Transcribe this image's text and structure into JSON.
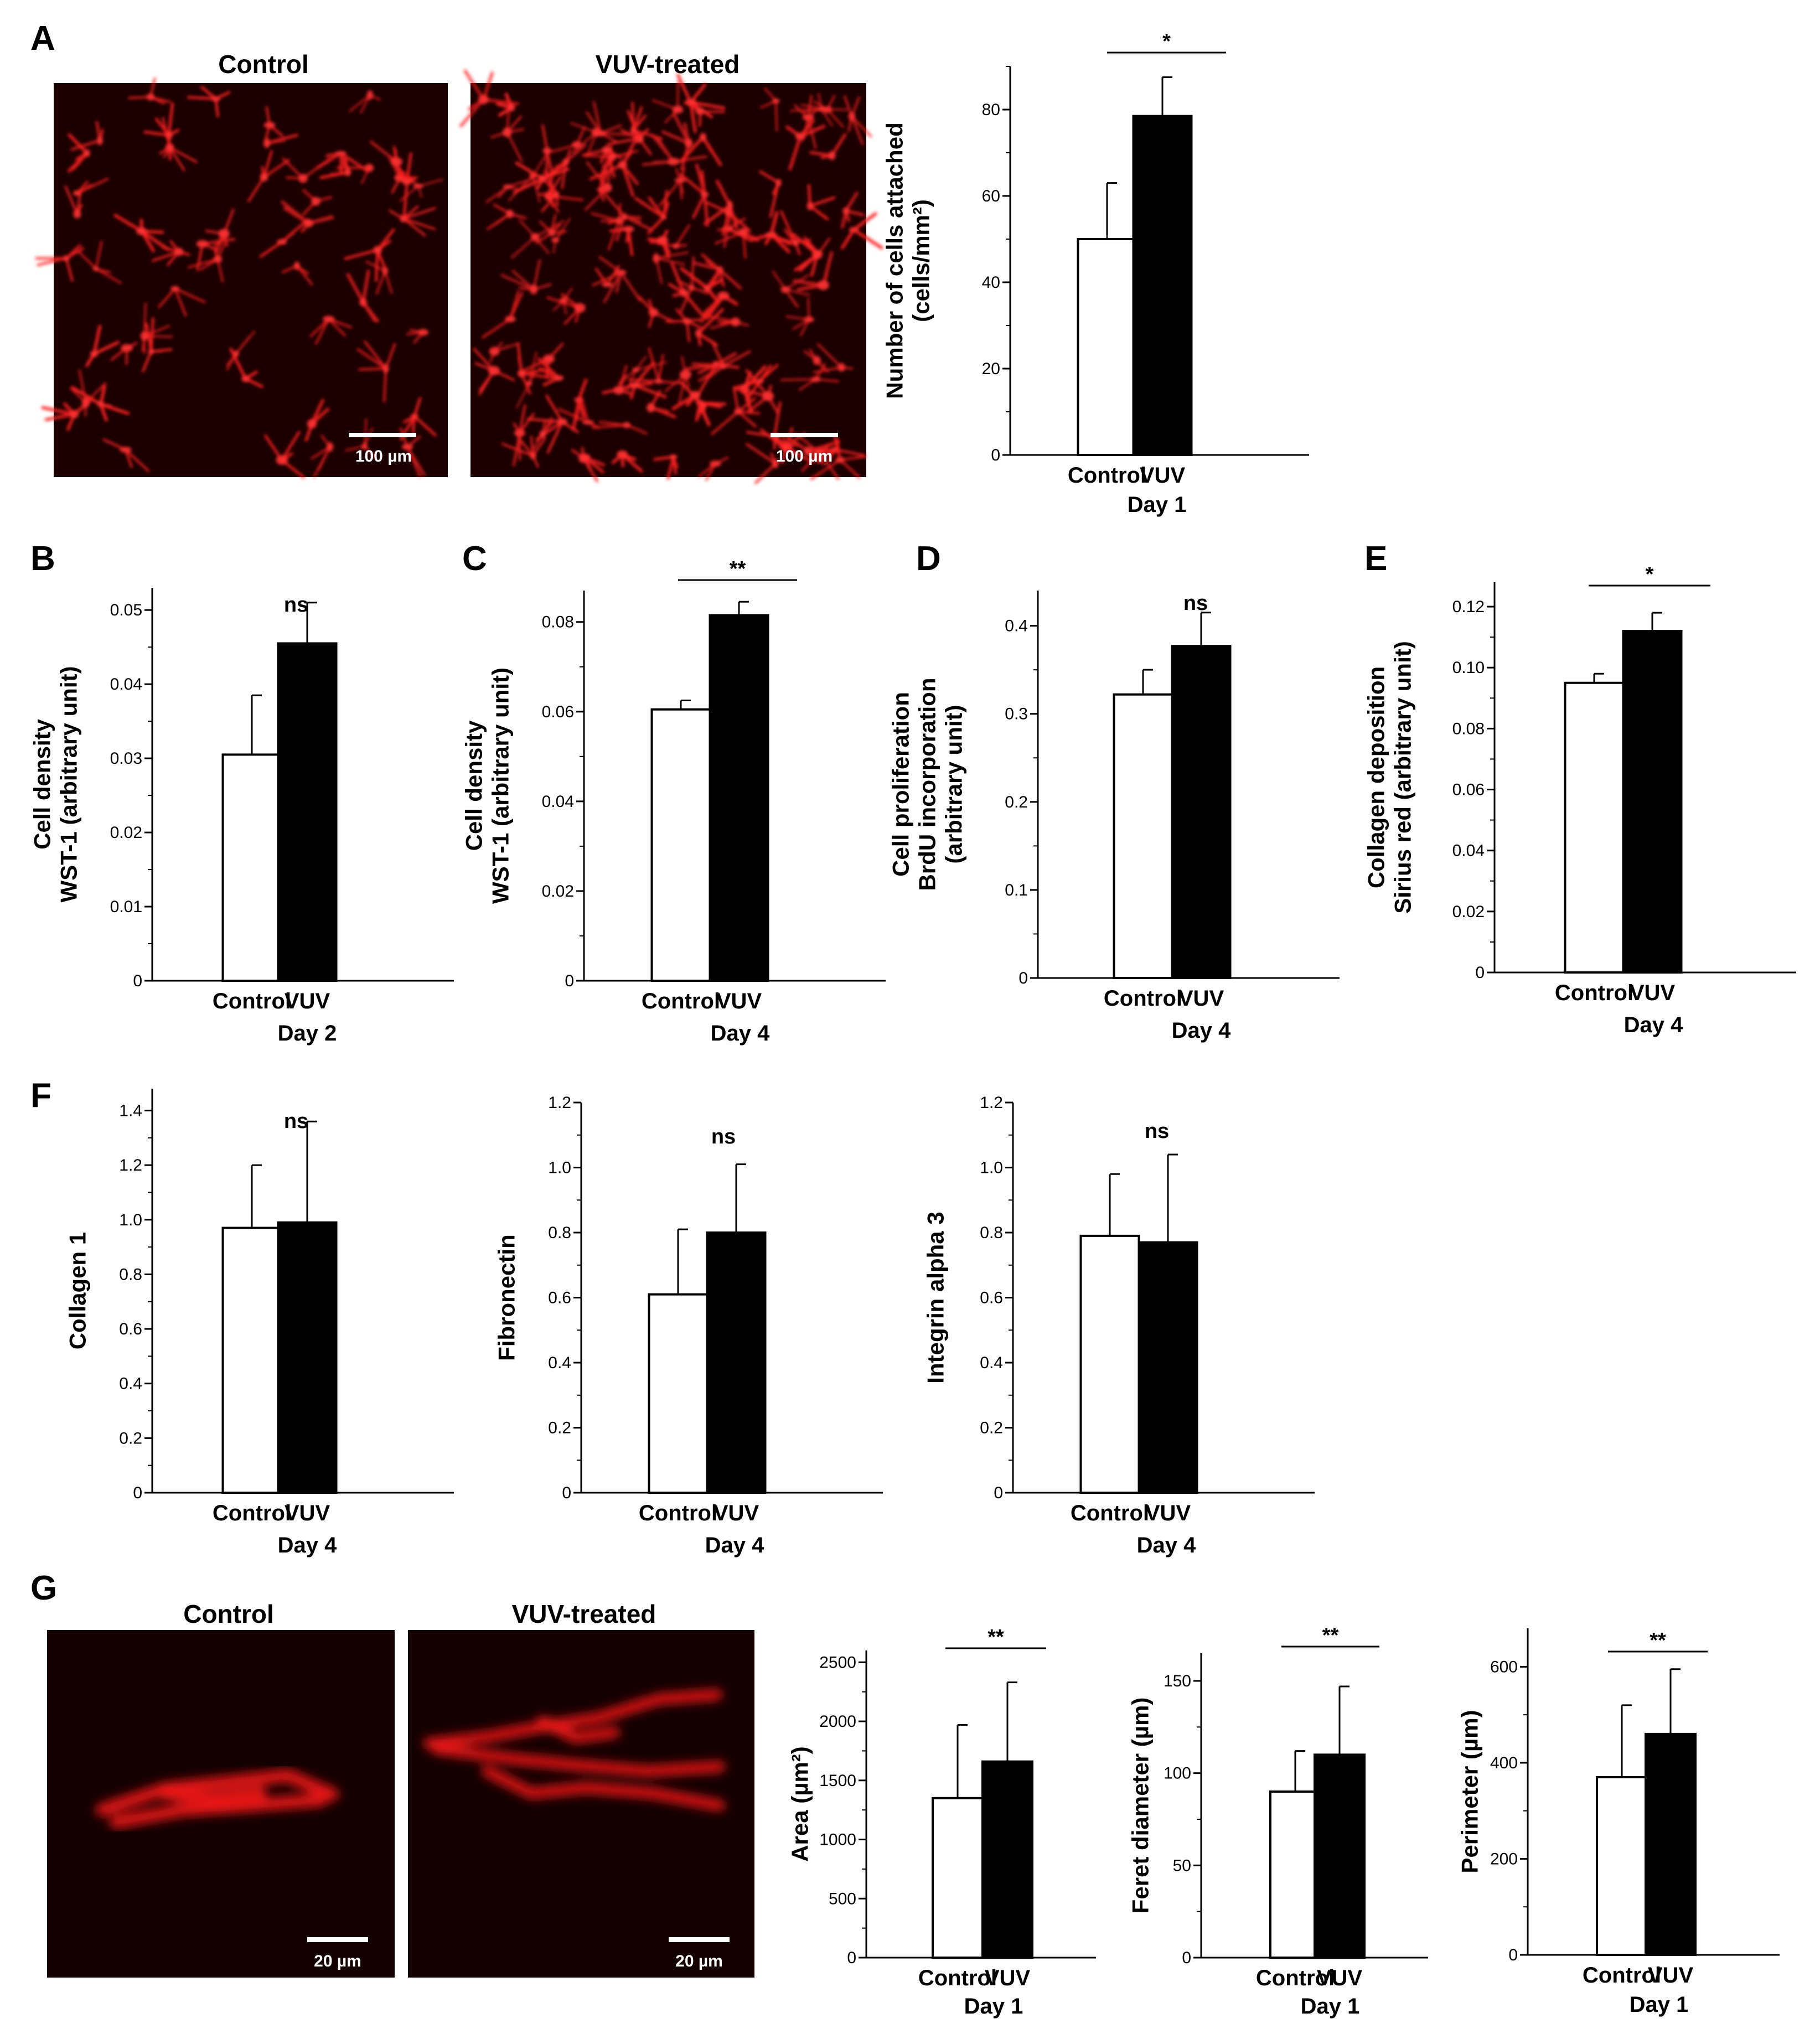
{
  "panel_labels": [
    "A",
    "B",
    "C",
    "D",
    "E",
    "F",
    "G"
  ],
  "micrographs": [
    {
      "title": "Control",
      "scale_label": "100 µm"
    },
    {
      "title": "VUV-treated",
      "scale_label": "100 µm"
    },
    {
      "title": "Control",
      "scale_label": "20 µm"
    },
    {
      "title": "VUV-treated",
      "scale_label": "20 µm"
    }
  ],
  "chart_data": [
    {
      "type": "bar",
      "panel": "A",
      "categories": [
        "Control",
        "VUV"
      ],
      "values": [
        50,
        78.5
      ],
      "errors": [
        13,
        9
      ],
      "significance": "*",
      "ylabel": [
        "Number of cells attached",
        "(cells/mm²)"
      ],
      "xlabel": "Day 1",
      "ylim": [
        0,
        90
      ],
      "yticks": [
        "0",
        "20",
        "40",
        "60",
        "80"
      ],
      "colors": [
        "#ffffff",
        "#000000"
      ]
    },
    {
      "type": "bar",
      "panel": "B",
      "categories": [
        "Control",
        "VUV"
      ],
      "values": [
        0.0305,
        0.0455
      ],
      "errors": [
        0.008,
        0.0055
      ],
      "significance": "ns",
      "ylabel": [
        "Cell density",
        "WST-1 (arbitrary unit)"
      ],
      "xlabel": "Day 2",
      "ylim": [
        0,
        0.053
      ],
      "yticks": [
        "0",
        "0.01",
        "0.02",
        "0.03",
        "0.04",
        "0.05"
      ],
      "colors": [
        "#ffffff",
        "#000000"
      ]
    },
    {
      "type": "bar",
      "panel": "C",
      "categories": [
        "Control",
        "VUV"
      ],
      "values": [
        0.0605,
        0.0815
      ],
      "errors": [
        0.002,
        0.003
      ],
      "significance": "**",
      "ylabel": [
        "Cell density",
        "WST-1 (arbitrary unit)"
      ],
      "xlabel": "Day 4",
      "ylim": [
        0,
        0.087
      ],
      "yticks": [
        "0",
        "0.02",
        "0.04",
        "0.06",
        "0.08"
      ],
      "colors": [
        "#ffffff",
        "#000000"
      ]
    },
    {
      "type": "bar",
      "panel": "D",
      "categories": [
        "Control",
        "VUV"
      ],
      "values": [
        0.322,
        0.377
      ],
      "errors": [
        0.028,
        0.038
      ],
      "significance": "ns",
      "ylabel": [
        "Cell proliferation",
        "BrdU incorporation",
        "(arbitrary unit)"
      ],
      "xlabel": "Day 4",
      "ylim": [
        0,
        0.44
      ],
      "yticks": [
        "0",
        "0.1",
        "0.2",
        "0.3",
        "0.4"
      ],
      "colors": [
        "#ffffff",
        "#000000"
      ]
    },
    {
      "type": "bar",
      "panel": "E",
      "categories": [
        "Control",
        "VUV"
      ],
      "values": [
        0.095,
        0.112
      ],
      "errors": [
        0.003,
        0.006
      ],
      "significance": "*",
      "ylabel": [
        "Collagen deposition",
        "Sirius red (arbitrary unit)"
      ],
      "xlabel": "Day 4",
      "ylim": [
        0,
        0.128
      ],
      "yticks": [
        "0",
        "0.02",
        "0.04",
        "0.06",
        "0.08",
        "0.10",
        "0.12"
      ],
      "colors": [
        "#ffffff",
        "#000000"
      ]
    },
    {
      "type": "bar",
      "panel": "F",
      "categories": [
        "Control",
        "VUV"
      ],
      "values": [
        0.97,
        0.99
      ],
      "errors": [
        0.23,
        0.37
      ],
      "significance": "ns",
      "ylabel": [
        "Collagen 1"
      ],
      "xlabel": "Day 4",
      "ylim": [
        0,
        1.48
      ],
      "yticks": [
        "0",
        "0.2",
        "0.4",
        "0.6",
        "0.8",
        "1.0",
        "1.2",
        "1.4"
      ],
      "colors": [
        "#ffffff",
        "#000000"
      ]
    },
    {
      "type": "bar",
      "panel": "F",
      "categories": [
        "Control",
        "VUV"
      ],
      "values": [
        0.61,
        0.8
      ],
      "errors": [
        0.2,
        0.21
      ],
      "significance": "ns",
      "ylabel": [
        "Fibronectin"
      ],
      "xlabel": "Day 4",
      "ylim": [
        0,
        1.2
      ],
      "yticks": [
        "0",
        "0.2",
        "0.4",
        "0.6",
        "0.8",
        "1.0",
        "1.2"
      ],
      "colors": [
        "#ffffff",
        "#000000"
      ]
    },
    {
      "type": "bar",
      "panel": "F",
      "categories": [
        "Control",
        "VUV"
      ],
      "values": [
        0.79,
        0.77
      ],
      "errors": [
        0.19,
        0.27
      ],
      "significance": "ns",
      "ylabel": [
        "Integrin alpha 3"
      ],
      "xlabel": "Day 4",
      "ylim": [
        0,
        1.2
      ],
      "yticks": [
        "0",
        "0.2",
        "0.4",
        "0.6",
        "0.8",
        "1.0",
        "1.2"
      ],
      "colors": [
        "#ffffff",
        "#000000"
      ]
    },
    {
      "type": "bar",
      "panel": "G",
      "categories": [
        "Control",
        "VUV"
      ],
      "values": [
        1350,
        1660
      ],
      "errors": [
        620,
        670
      ],
      "significance": "**",
      "ylabel": [
        "Area (µm²)"
      ],
      "xlabel": "Day 1",
      "ylim": [
        0,
        2600
      ],
      "yticks": [
        "0",
        "500",
        "1000",
        "1500",
        "2000",
        "2500"
      ],
      "colors": [
        "#ffffff",
        "#000000"
      ]
    },
    {
      "type": "bar",
      "panel": "G",
      "categories": [
        "Control",
        "VUV"
      ],
      "values": [
        90,
        110
      ],
      "errors": [
        22,
        37
      ],
      "significance": "**",
      "ylabel": [
        "Feret diameter (µm)"
      ],
      "xlabel": "Day 1",
      "ylim": [
        0,
        165
      ],
      "yticks": [
        "0",
        "50",
        "100",
        "150"
      ],
      "colors": [
        "#ffffff",
        "#000000"
      ]
    },
    {
      "type": "bar",
      "panel": "G",
      "categories": [
        "Control",
        "VUV"
      ],
      "values": [
        370,
        460
      ],
      "errors": [
        150,
        135
      ],
      "significance": "**",
      "ylabel": [
        "Perimeter (µm)"
      ],
      "xlabel": "Day 1",
      "ylim": [
        0,
        680
      ],
      "yticks": [
        "0",
        "200",
        "400",
        "600"
      ],
      "colors": [
        "#ffffff",
        "#000000"
      ]
    }
  ]
}
